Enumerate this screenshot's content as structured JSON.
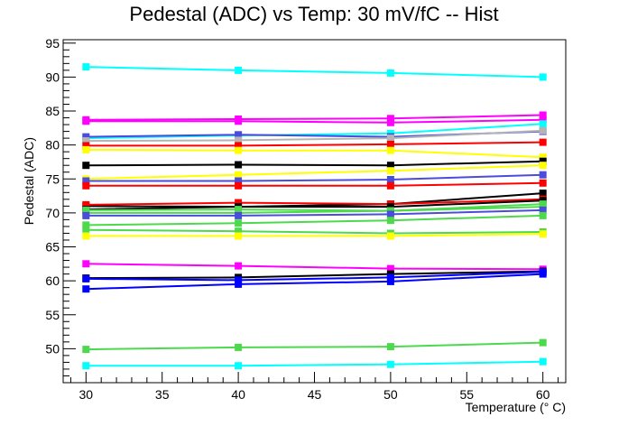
{
  "chart_data": {
    "type": "line",
    "title": "Pedestal (ADC) vs Temp: 30 mV/fC -- Hist",
    "xlabel": "Temperature (° C)",
    "ylabel": "Pedestal (ADC)",
    "xlim": [
      28.5,
      61.5
    ],
    "ylim": [
      45.0,
      95.5
    ],
    "x": [
      30,
      40,
      50,
      60
    ],
    "x_ticks": [
      30,
      35,
      40,
      45,
      50,
      55,
      60
    ],
    "y_ticks": [
      50,
      55,
      60,
      65,
      70,
      75,
      80,
      85,
      90,
      95
    ],
    "grid": false,
    "legend": "none",
    "series": [
      {
        "color": "#00ffff",
        "values": [
          91.5,
          91.0,
          90.6,
          90.0
        ]
      },
      {
        "color": "#ff00ff",
        "values": [
          83.7,
          83.8,
          83.9,
          84.4
        ]
      },
      {
        "color": "#ff00ff",
        "values": [
          83.5,
          83.5,
          83.3,
          83.7
        ]
      },
      {
        "color": "#00ffff",
        "values": [
          81.0,
          81.4,
          81.7,
          83.1
        ]
      },
      {
        "color": "#4b4bdc",
        "values": [
          81.2,
          81.5,
          81.2,
          82.0
        ]
      },
      {
        "color": "#b4b4b4",
        "values": [
          80.6,
          80.7,
          81.0,
          82.1
        ]
      },
      {
        "color": "#ff0000",
        "values": [
          79.9,
          79.9,
          80.1,
          80.4
        ]
      },
      {
        "color": "#ffff00",
        "values": [
          79.3,
          79.2,
          79.2,
          78.2
        ]
      },
      {
        "color": "#000000",
        "values": [
          77.0,
          77.1,
          77.0,
          77.6
        ]
      },
      {
        "color": "#ffff00",
        "values": [
          75.0,
          75.6,
          76.2,
          77.0
        ]
      },
      {
        "color": "#4b4bdc",
        "values": [
          74.7,
          74.7,
          74.9,
          75.6
        ]
      },
      {
        "color": "#ff0000",
        "values": [
          74.0,
          74.0,
          74.0,
          74.4
        ]
      },
      {
        "color": "#000000",
        "values": [
          71.0,
          70.9,
          71.3,
          72.9
        ]
      },
      {
        "color": "#ff0000",
        "values": [
          71.2,
          71.5,
          71.3,
          72.0
        ]
      },
      {
        "color": "#000000",
        "values": [
          70.5,
          70.9,
          70.9,
          71.8
        ]
      },
      {
        "color": "#4cd94c",
        "values": [
          70.4,
          70.5,
          70.3,
          71.3
        ]
      },
      {
        "color": "#4cd94c",
        "values": [
          70.0,
          70.0,
          70.3,
          70.9
        ]
      },
      {
        "color": "#4b4bdc",
        "values": [
          69.6,
          69.6,
          69.8,
          70.4
        ]
      },
      {
        "color": "#4cd94c",
        "values": [
          68.2,
          68.5,
          68.9,
          69.6
        ]
      },
      {
        "color": "#4cd94c",
        "values": [
          67.5,
          67.3,
          67.0,
          67.2
        ]
      },
      {
        "color": "#ffff00",
        "values": [
          66.6,
          66.6,
          66.6,
          66.9
        ]
      },
      {
        "color": "#ff00ff",
        "values": [
          62.5,
          62.2,
          61.8,
          61.7
        ]
      },
      {
        "color": "#000000",
        "values": [
          60.4,
          60.5,
          61.0,
          61.4
        ]
      },
      {
        "color": "#0000ff",
        "values": [
          60.3,
          60.1,
          60.5,
          61.3
        ]
      },
      {
        "color": "#0000ff",
        "values": [
          58.8,
          59.5,
          59.9,
          61.0
        ]
      },
      {
        "color": "#4cd94c",
        "values": [
          49.9,
          50.2,
          50.3,
          50.9
        ]
      },
      {
        "color": "#00ffff",
        "values": [
          47.5,
          47.5,
          47.7,
          48.1
        ]
      }
    ]
  }
}
